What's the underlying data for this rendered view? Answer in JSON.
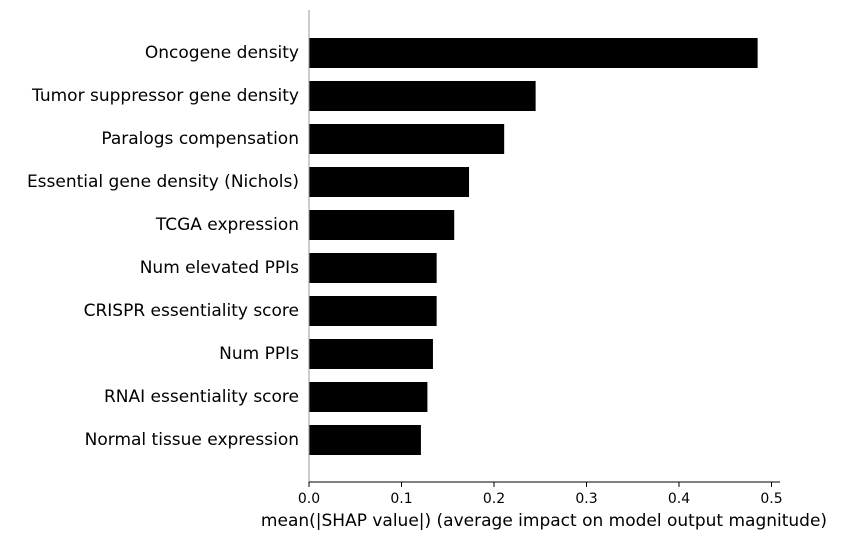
{
  "chart_data": {
    "type": "bar",
    "orientation": "horizontal",
    "categories": [
      "Oncogene density",
      "Tumor suppressor gene density",
      "Paralogs compensation",
      "Essential gene density (Nichols)",
      "TCGA expression",
      "Num elevated PPIs",
      "CRISPR essentiality score",
      "Num PPIs",
      "RNAI essentiality score",
      "Normal tissue expression"
    ],
    "values": [
      0.485,
      0.245,
      0.211,
      0.173,
      0.157,
      0.138,
      0.138,
      0.134,
      0.128,
      0.121
    ],
    "title": "",
    "xlabel": "mean(|SHAP value|) (average impact on model output magnitude)",
    "ylabel": "",
    "xlim": [
      0,
      0.51
    ],
    "xticks": [
      "0.0",
      "0.1",
      "0.2",
      "0.3",
      "0.4",
      "0.5"
    ],
    "bar_color": "#000000",
    "axis_color": "#999999",
    "grid": false,
    "legend": "none"
  }
}
